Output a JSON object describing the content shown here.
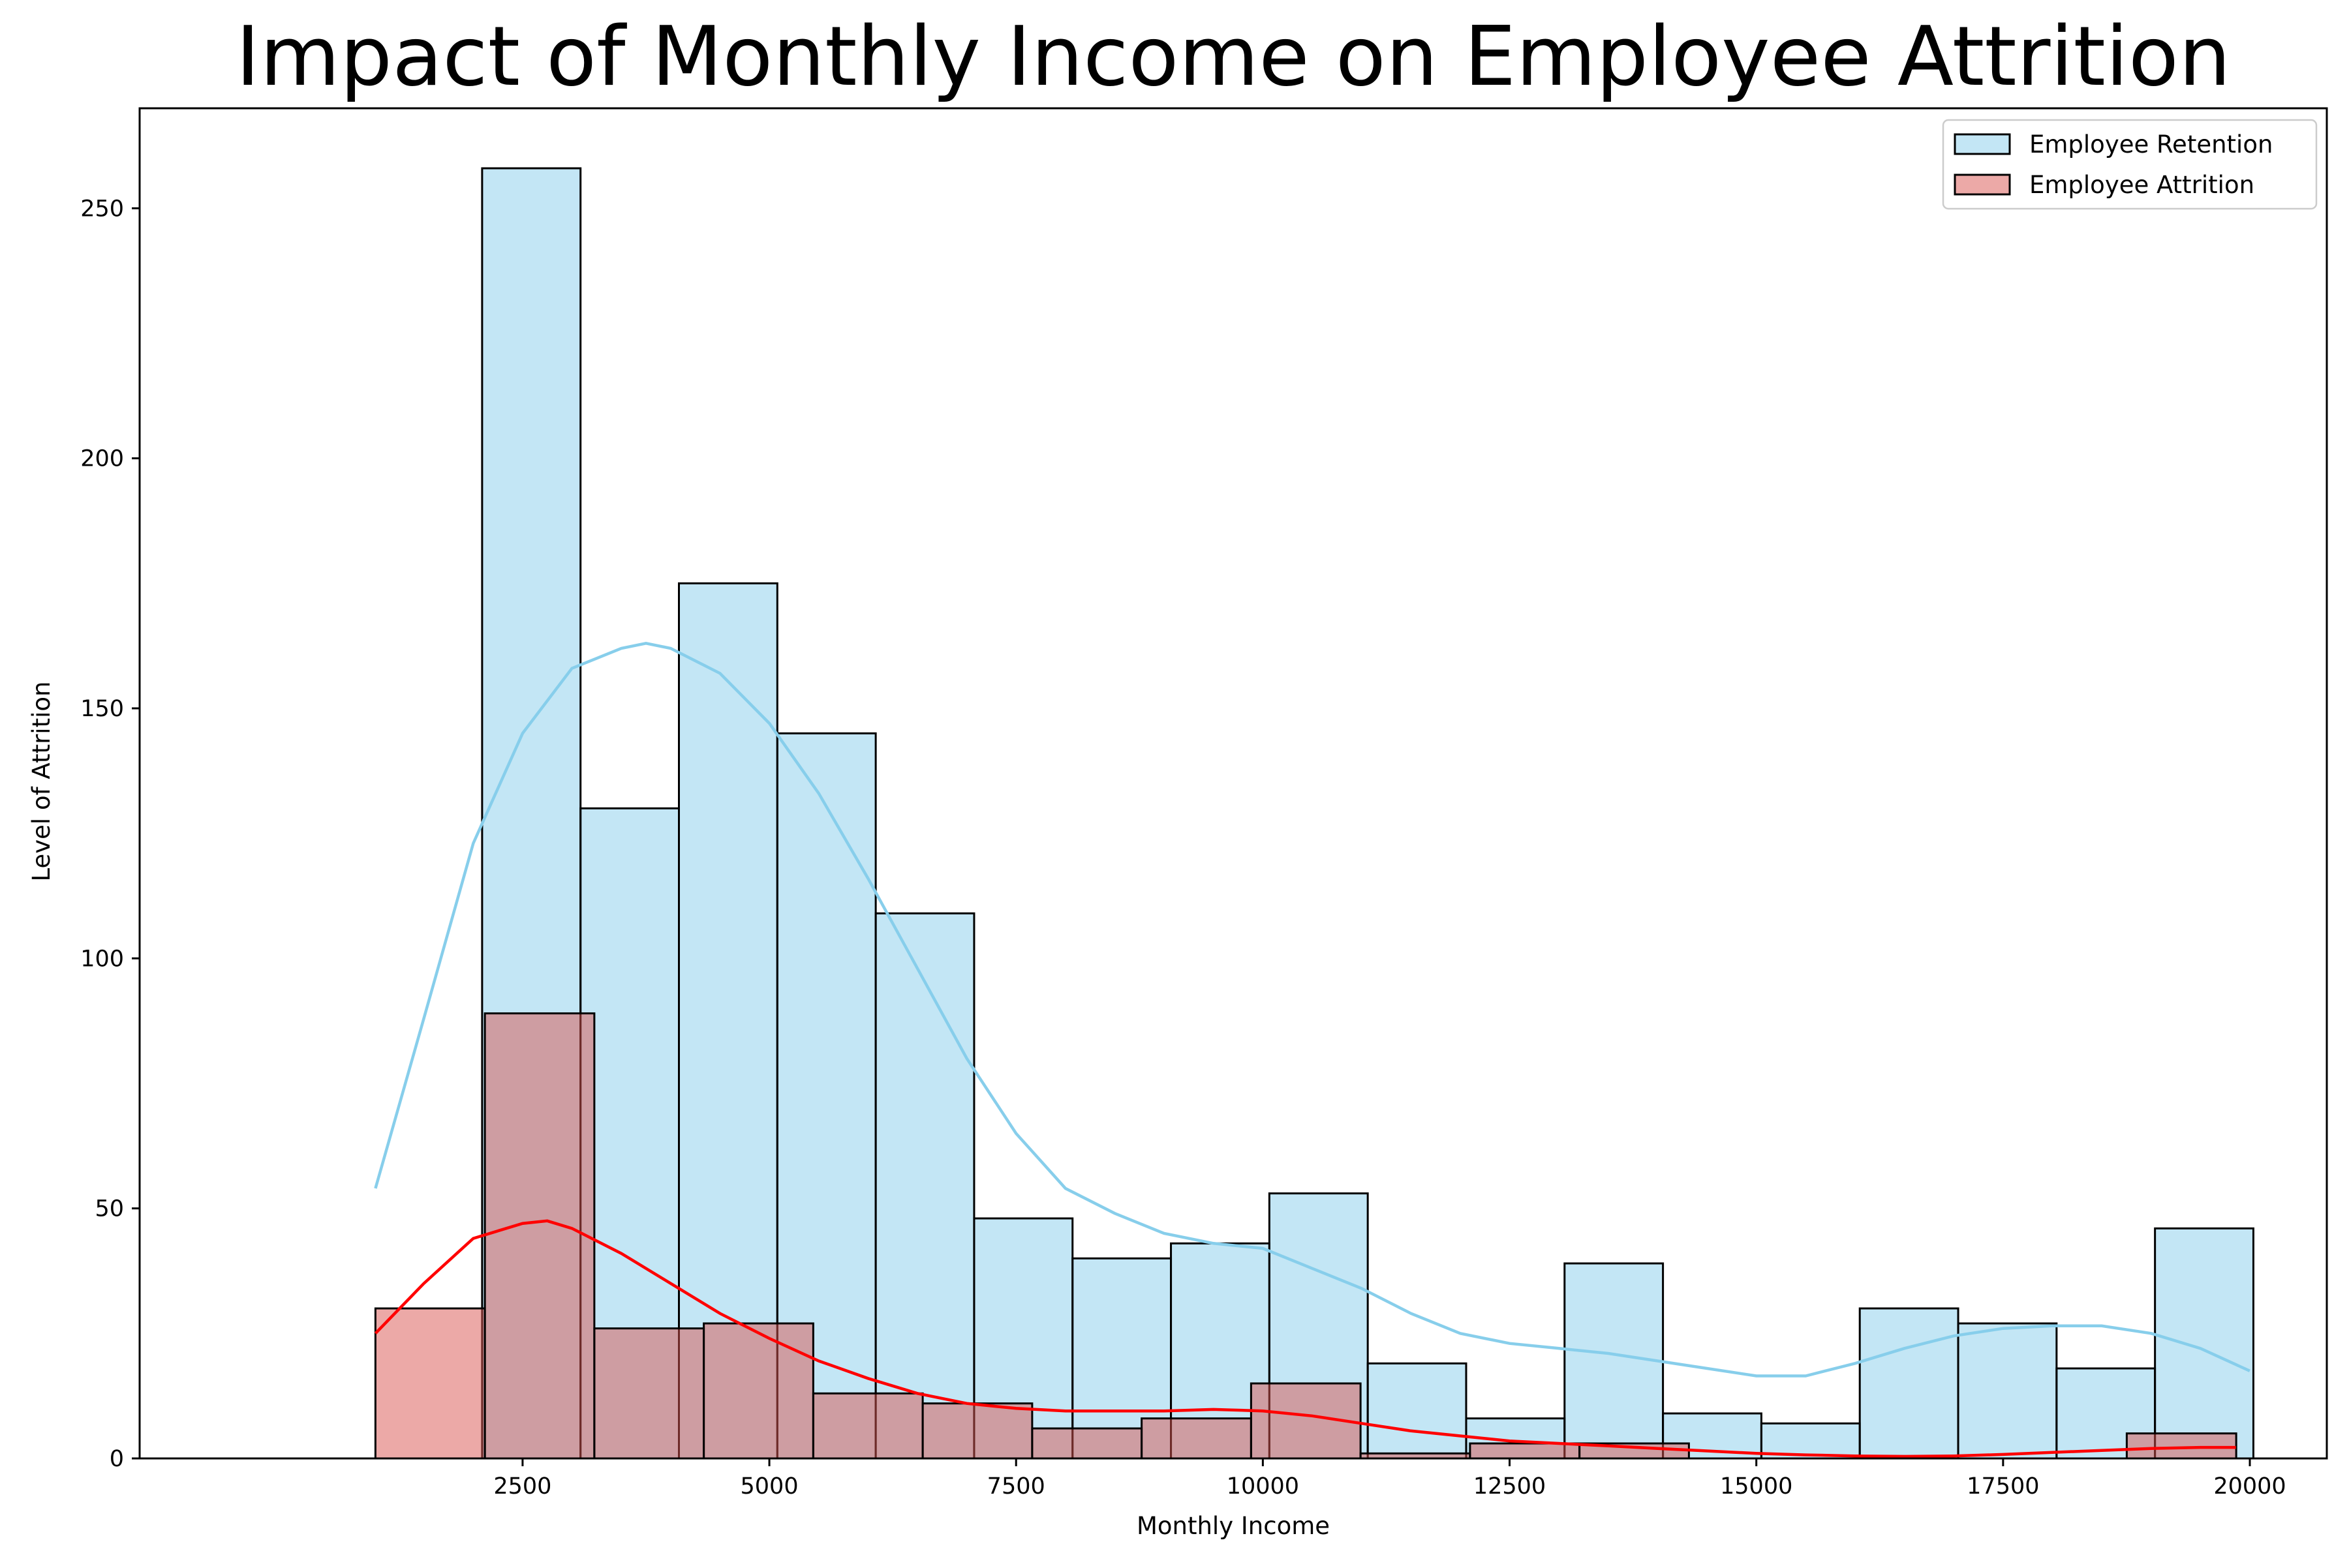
{
  "chart_data": {
    "type": "histogram",
    "title": "Impact of Monthly Income on Employee Attrition",
    "xlabel": "Monthly Income",
    "ylabel": "Level of Attrition",
    "xlim": [
      -1380,
      20780
    ],
    "ylim": [
      0,
      270
    ],
    "x_ticks": [
      2500,
      5000,
      7500,
      10000,
      12500,
      15000,
      17500,
      20000
    ],
    "y_ticks": [
      0,
      50,
      100,
      150,
      200,
      250
    ],
    "grid": false,
    "legend_position": "top-right",
    "series": [
      {
        "name": "Employee Retention",
        "color": "#87ceeb",
        "bin_start": 2090,
        "bin_width": 997,
        "values": [
          258,
          130,
          175,
          145,
          109,
          48,
          40,
          43,
          53,
          19,
          8,
          39,
          9,
          7,
          30,
          27,
          18,
          46
        ],
        "kde_x": [
          1009,
          1500,
          2000,
          2500,
          3000,
          3500,
          3750,
          4000,
          4500,
          5000,
          5500,
          6000,
          6500,
          7000,
          7500,
          8000,
          8500,
          9000,
          9500,
          10000,
          10500,
          11000,
          11500,
          12000,
          12500,
          13000,
          13500,
          14000,
          14500,
          15000,
          15500,
          16000,
          16500,
          17000,
          17500,
          18000,
          18500,
          19000,
          19500,
          19999
        ],
        "kde_y": [
          54,
          88,
          123,
          145,
          158,
          162,
          163,
          162,
          157,
          147,
          133,
          116,
          98,
          80,
          65,
          54,
          49,
          45,
          43,
          42,
          38,
          34,
          29,
          25,
          23,
          22,
          21,
          19.5,
          18,
          16.5,
          16.5,
          19,
          22,
          24.5,
          26,
          26.5,
          26.5,
          25,
          22,
          17.5
        ]
      },
      {
        "name": "Employee Attrition",
        "color": "#d9534f",
        "bin_start": 1009,
        "bin_width": 1109,
        "values": [
          30,
          89,
          26,
          27,
          13,
          11,
          6,
          8,
          15,
          1,
          3,
          3,
          0,
          0,
          0,
          0,
          5
        ],
        "kde_x": [
          1009,
          1500,
          2000,
          2500,
          2750,
          3000,
          3500,
          4000,
          4500,
          5000,
          5500,
          6000,
          6500,
          7000,
          7500,
          8000,
          8500,
          9000,
          9500,
          10000,
          10500,
          11000,
          11500,
          12000,
          12500,
          13000,
          13500,
          14000,
          14500,
          15000,
          15500,
          16000,
          16500,
          17000,
          17500,
          18000,
          18500,
          19000,
          19500,
          19859
        ],
        "kde_y": [
          25,
          35,
          44,
          47,
          47.5,
          46,
          41,
          35,
          29,
          24,
          19.5,
          16,
          13,
          11,
          10,
          9.5,
          9.5,
          9.5,
          9.8,
          9.5,
          8.5,
          7,
          5.5,
          4.5,
          3.5,
          3,
          2.5,
          2,
          1.5,
          1,
          0.7,
          0.5,
          0.4,
          0.5,
          0.8,
          1.2,
          1.6,
          2,
          2.2,
          2.2
        ]
      }
    ]
  }
}
